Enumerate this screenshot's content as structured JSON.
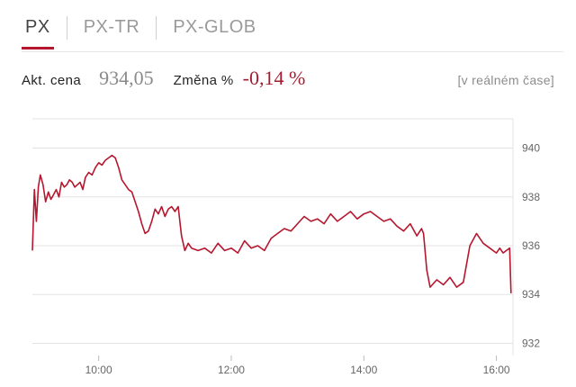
{
  "tabs": [
    {
      "label": "PX",
      "active": true
    },
    {
      "label": "PX-TR",
      "active": false
    },
    {
      "label": "PX-GLOB",
      "active": false
    }
  ],
  "info": {
    "price_label": "Akt. cena",
    "price": "934,05",
    "change_label": "Změna %",
    "change": "-0,14 %",
    "realtime": "[v reálném čase]"
  },
  "colors": {
    "accent": "#b5172f",
    "line": "#b5172f",
    "grid": "#e3e3e3"
  },
  "chart_data": {
    "type": "line",
    "title": "",
    "xlabel": "",
    "ylabel": "",
    "xlim": [
      9.0,
      16.25
    ],
    "ylim": [
      931.5,
      941.2
    ],
    "y_ticks": [
      940,
      938,
      936,
      934,
      932
    ],
    "y_tick_labels": [
      "940",
      "938",
      "936",
      "934",
      "932"
    ],
    "x_ticks": [
      10,
      12,
      14,
      16
    ],
    "x_tick_labels": [
      "10:00",
      "12:00",
      "14:00",
      "16:00"
    ],
    "grid": "horizontal",
    "series": [
      {
        "name": "",
        "x": [
          9.0,
          9.03,
          9.06,
          9.09,
          9.12,
          9.16,
          9.2,
          9.24,
          9.28,
          9.32,
          9.36,
          9.4,
          9.44,
          9.48,
          9.52,
          9.56,
          9.6,
          9.64,
          9.68,
          9.72,
          9.76,
          9.8,
          9.85,
          9.9,
          9.95,
          10.0,
          10.05,
          10.1,
          10.15,
          10.2,
          10.25,
          10.3,
          10.35,
          10.4,
          10.45,
          10.5,
          10.55,
          10.6,
          10.65,
          10.7,
          10.75,
          10.8,
          10.85,
          10.9,
          10.95,
          11.0,
          11.05,
          11.1,
          11.15,
          11.2,
          11.25,
          11.3,
          11.35,
          11.4,
          11.5,
          11.6,
          11.7,
          11.8,
          11.9,
          12.0,
          12.1,
          12.2,
          12.3,
          12.4,
          12.5,
          12.6,
          12.7,
          12.8,
          12.9,
          13.0,
          13.1,
          13.2,
          13.3,
          13.4,
          13.5,
          13.6,
          13.7,
          13.8,
          13.9,
          14.0,
          14.1,
          14.2,
          14.3,
          14.4,
          14.5,
          14.6,
          14.7,
          14.8,
          14.87,
          14.9,
          14.95,
          15.0,
          15.1,
          15.2,
          15.3,
          15.4,
          15.5,
          15.6,
          15.7,
          15.8,
          15.9,
          16.0,
          16.05,
          16.1,
          16.15,
          16.2,
          16.22
        ],
        "values": [
          935.8,
          938.3,
          937.0,
          938.4,
          938.9,
          938.5,
          937.8,
          938.2,
          937.9,
          938.1,
          938.3,
          938.0,
          938.6,
          938.4,
          938.5,
          938.7,
          938.6,
          938.4,
          938.5,
          938.6,
          938.3,
          938.8,
          939.0,
          938.9,
          939.2,
          939.4,
          939.3,
          939.5,
          939.6,
          939.7,
          939.6,
          939.2,
          938.7,
          938.5,
          938.3,
          938.2,
          937.8,
          937.4,
          936.9,
          936.5,
          936.6,
          937.0,
          937.5,
          937.3,
          937.6,
          937.2,
          937.5,
          937.6,
          937.4,
          937.6,
          936.4,
          935.8,
          936.1,
          935.9,
          935.8,
          935.9,
          935.7,
          936.1,
          935.8,
          935.9,
          935.7,
          936.2,
          935.9,
          936.0,
          935.8,
          936.3,
          936.5,
          936.7,
          936.6,
          936.9,
          937.2,
          937.0,
          937.1,
          936.9,
          937.3,
          937.0,
          937.2,
          937.4,
          937.1,
          937.3,
          937.4,
          937.2,
          937.0,
          937.1,
          936.8,
          936.6,
          936.9,
          936.4,
          936.7,
          936.5,
          935.0,
          934.3,
          934.6,
          934.4,
          934.7,
          934.3,
          934.5,
          936.0,
          936.5,
          936.1,
          935.9,
          935.7,
          935.9,
          935.7,
          935.8,
          935.9,
          934.05
        ]
      }
    ]
  }
}
